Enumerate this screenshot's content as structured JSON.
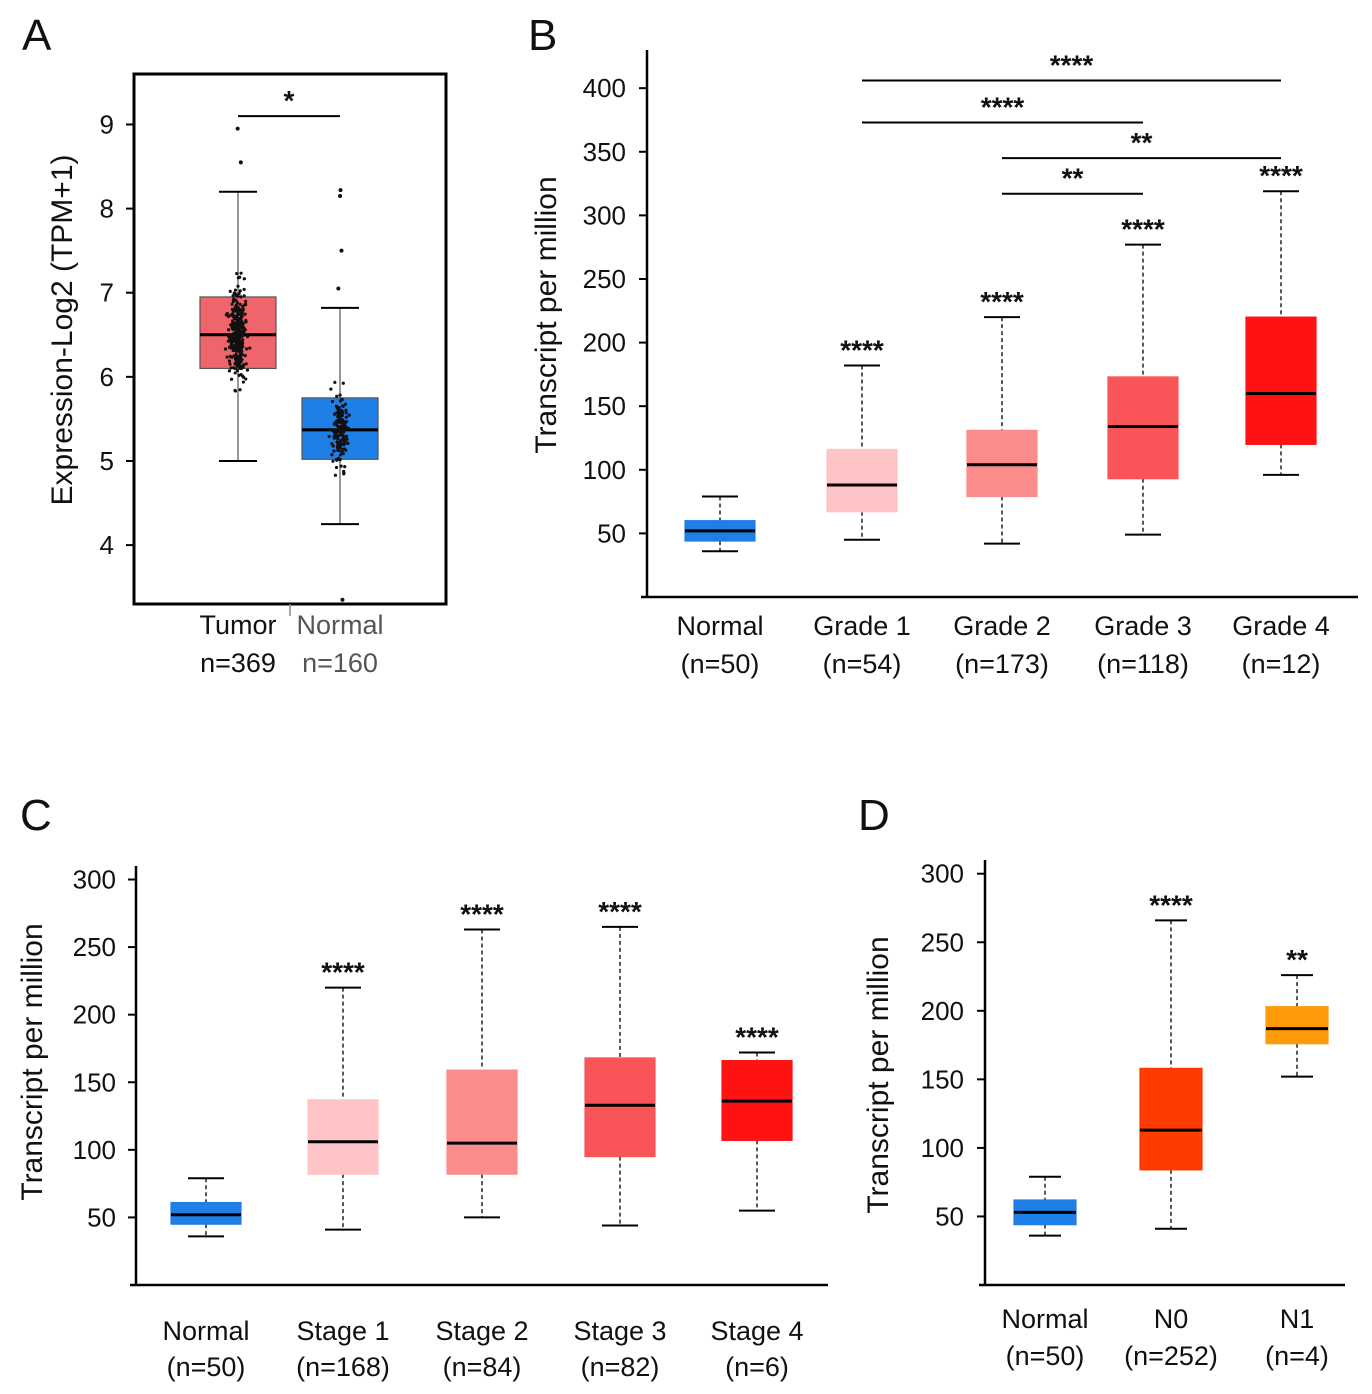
{
  "figure": {
    "panels": [
      "A",
      "B",
      "C",
      "D"
    ]
  },
  "chart_data": [
    {
      "id": "A",
      "type": "box",
      "ylabel": "Expression-Log2 (TPM+1)",
      "ylim": [
        3.3,
        9.6
      ],
      "yticks": [
        4,
        5,
        6,
        7,
        8,
        9
      ],
      "groups": [
        {
          "label": "Tumor",
          "n": "n=369",
          "color": "#f0656b",
          "whisker_low": 5.0,
          "q1": 6.1,
          "median": 6.5,
          "q3": 6.95,
          "whisker_high": 8.2,
          "outliers": [
            8.55,
            8.95
          ]
        },
        {
          "label": "Normal",
          "n": "n=160",
          "color": "#1e7fe6",
          "whisker_low": 4.25,
          "q1": 5.02,
          "median": 5.37,
          "q3": 5.75,
          "whisker_high": 6.82,
          "outliers": [
            7.05,
            7.5,
            8.15,
            8.22,
            3.35
          ]
        }
      ],
      "comparisons": [
        {
          "from": 0,
          "to": 1,
          "y": 9.1,
          "label": "*"
        }
      ]
    },
    {
      "id": "B",
      "type": "box",
      "ylabel": "Transcript per million",
      "ylim": [
        0,
        430
      ],
      "yticks": [
        50,
        100,
        150,
        200,
        250,
        300,
        350,
        400
      ],
      "groups": [
        {
          "label": "Normal",
          "n": "(n=50)",
          "color": "#1e7fe6",
          "whisker_low": 36,
          "q1": 44,
          "median": 52,
          "q3": 60,
          "whisker_high": 79,
          "sig": ""
        },
        {
          "label": "Grade 1",
          "n": "(n=54)",
          "color": "#ffc4c6",
          "whisker_low": 45,
          "q1": 67,
          "median": 88,
          "q3": 116,
          "whisker_high": 182,
          "sig": "****"
        },
        {
          "label": "Grade 2",
          "n": "(n=173)",
          "color": "#fb8c8c",
          "whisker_low": 42,
          "q1": 79,
          "median": 104,
          "q3": 131,
          "whisker_high": 220,
          "sig": "****"
        },
        {
          "label": "Grade 3",
          "n": "(n=118)",
          "color": "#f95559",
          "whisker_low": 49,
          "q1": 93,
          "median": 134,
          "q3": 173,
          "whisker_high": 277,
          "sig": "****"
        },
        {
          "label": "Grade 4",
          "n": "(n=12)",
          "color": "#ff1212",
          "whisker_low": 96,
          "q1": 120,
          "median": 160,
          "q3": 220,
          "whisker_high": 319,
          "sig": "****"
        }
      ],
      "comparisons": [
        {
          "from": 1,
          "to": 4,
          "y": 406,
          "label": "****"
        },
        {
          "from": 1,
          "to": 3,
          "y": 373,
          "label": "****"
        },
        {
          "from": 2,
          "to": 4,
          "y": 345,
          "label": "**"
        },
        {
          "from": 2,
          "to": 3,
          "y": 317,
          "label": "**"
        }
      ]
    },
    {
      "id": "C",
      "type": "box",
      "ylabel": "Transcript per million",
      "ylim": [
        0,
        310
      ],
      "yticks": [
        50,
        100,
        150,
        200,
        250,
        300
      ],
      "groups": [
        {
          "label": "Normal",
          "n": "(n=50)",
          "color": "#1e7fe6",
          "whisker_low": 36,
          "q1": 45,
          "median": 52,
          "q3": 61,
          "whisker_high": 79,
          "sig": ""
        },
        {
          "label": "Stage 1",
          "n": "(n=168)",
          "color": "#ffc4c6",
          "whisker_low": 41,
          "q1": 82,
          "median": 106,
          "q3": 137,
          "whisker_high": 220,
          "sig": "****"
        },
        {
          "label": "Stage 2",
          "n": "(n=84)",
          "color": "#fb8c8c",
          "whisker_low": 50,
          "q1": 82,
          "median": 105,
          "q3": 159,
          "whisker_high": 263,
          "sig": "****"
        },
        {
          "label": "Stage 3",
          "n": "(n=82)",
          "color": "#f95559",
          "whisker_low": 44,
          "q1": 95,
          "median": 133,
          "q3": 168,
          "whisker_high": 265,
          "sig": "****"
        },
        {
          "label": "Stage 4",
          "n": "(n=6)",
          "color": "#ff1212",
          "whisker_low": 55,
          "q1": 107,
          "median": 136,
          "q3": 166,
          "whisker_high": 172,
          "sig": "****"
        }
      ],
      "comparisons": []
    },
    {
      "id": "D",
      "type": "box",
      "ylabel": "Transcript per million",
      "ylim": [
        0,
        310
      ],
      "yticks": [
        50,
        100,
        150,
        200,
        250,
        300
      ],
      "groups": [
        {
          "label": "Normal",
          "n": "(n=50)",
          "color": "#1e7fe6",
          "whisker_low": 36,
          "q1": 44,
          "median": 53,
          "q3": 62,
          "whisker_high": 79,
          "sig": ""
        },
        {
          "label": "N0",
          "n": "(n=252)",
          "color": "#ff3b00",
          "whisker_low": 41,
          "q1": 84,
          "median": 113,
          "q3": 158,
          "whisker_high": 266,
          "sig": "****"
        },
        {
          "label": "N1",
          "n": "(n=4)",
          "color": "#ff9a0a",
          "whisker_low": 152,
          "q1": 176,
          "median": 187,
          "q3": 203,
          "whisker_high": 226,
          "sig": "**"
        }
      ],
      "comparisons": []
    }
  ]
}
